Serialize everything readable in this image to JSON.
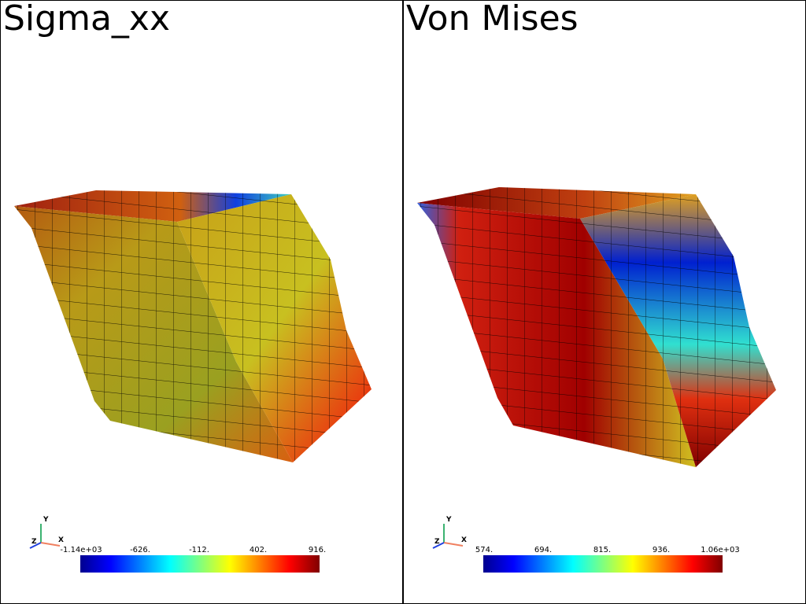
{
  "panels": [
    {
      "title": "Sigma_xx",
      "colorbar": {
        "ticks": [
          "-1.14e+03",
          "-626.",
          "-112.",
          "402.",
          "916."
        ]
      },
      "axes": {
        "y": "Y",
        "z": "Z",
        "x": "X"
      }
    },
    {
      "title": "Von Mises",
      "colorbar": {
        "ticks": [
          "574.",
          "694.",
          "815.",
          "936.",
          "1.06e+03"
        ]
      },
      "axes": {
        "y": "Y",
        "z": "Z",
        "x": "X"
      }
    }
  ]
}
